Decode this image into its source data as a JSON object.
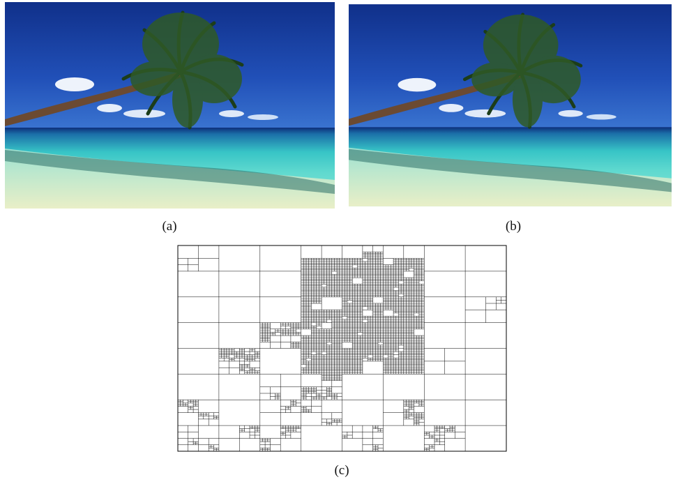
{
  "figure": {
    "subfigures": [
      {
        "caption": "(a)"
      },
      {
        "caption": "(b)"
      },
      {
        "caption": "(c)"
      }
    ]
  }
}
